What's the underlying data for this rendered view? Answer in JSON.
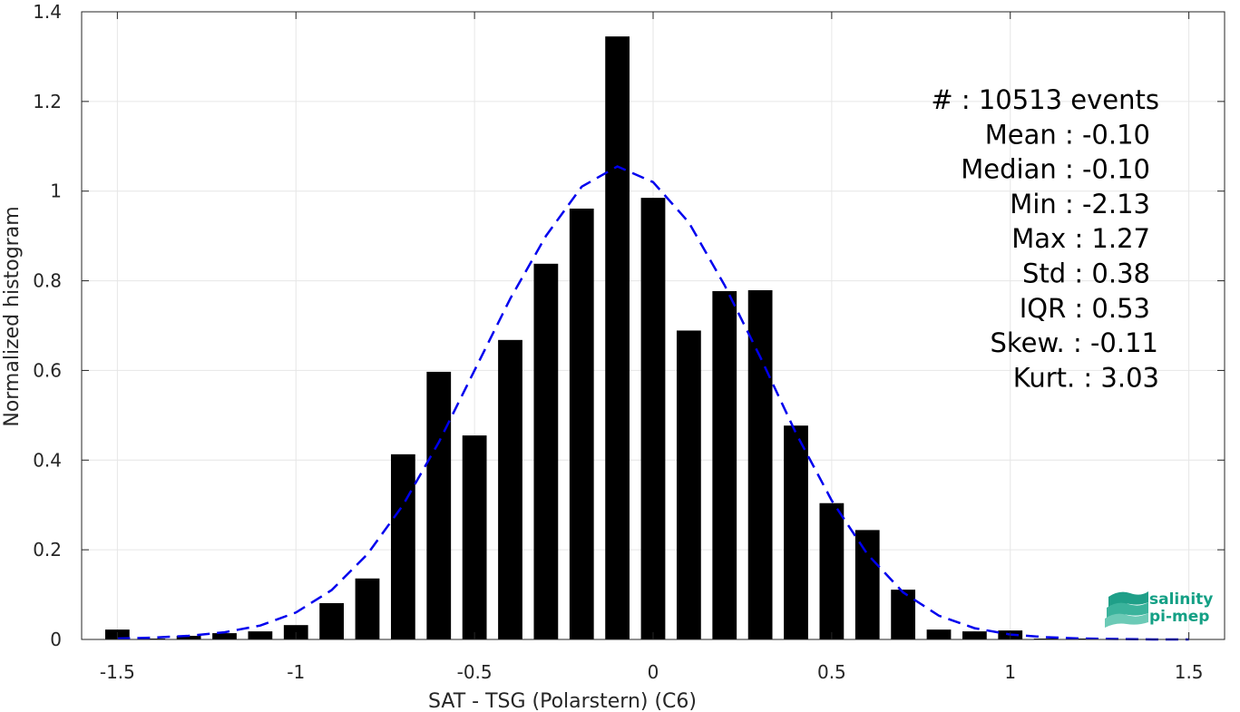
{
  "chart_data": {
    "type": "bar",
    "xlabel": "SAT - TSG (Polarstern) (C6)",
    "ylabel": "Normalized histogram",
    "xlim": [
      -1.6,
      1.6
    ],
    "ylim": [
      0,
      1.4
    ],
    "xticks": [
      -1.5,
      -1,
      -0.5,
      0,
      0.5,
      1,
      1.5
    ],
    "xtick_labels": [
      "-1.5",
      "-1",
      "-0.5",
      "0",
      "0.5",
      "1",
      "1.5"
    ],
    "yticks": [
      0,
      0.2,
      0.4,
      0.6,
      0.8,
      1,
      1.2,
      1.4
    ],
    "ytick_labels": [
      "0",
      "0.2",
      "0.4",
      "0.6",
      "0.8",
      "1",
      "1.2",
      "1.4"
    ],
    "grid": true,
    "bin_width": 0.1,
    "bar_color": "#000000",
    "bins": [
      {
        "x": -1.5,
        "y": 0.022
      },
      {
        "x": -1.4,
        "y": 0.002
      },
      {
        "x": -1.3,
        "y": 0.008
      },
      {
        "x": -1.2,
        "y": 0.014
      },
      {
        "x": -1.1,
        "y": 0.018
      },
      {
        "x": -1.0,
        "y": 0.032
      },
      {
        "x": -0.9,
        "y": 0.081
      },
      {
        "x": -0.8,
        "y": 0.136
      },
      {
        "x": -0.7,
        "y": 0.413
      },
      {
        "x": -0.6,
        "y": 0.597
      },
      {
        "x": -0.5,
        "y": 0.455
      },
      {
        "x": -0.4,
        "y": 0.668
      },
      {
        "x": -0.3,
        "y": 0.838
      },
      {
        "x": -0.2,
        "y": 0.961
      },
      {
        "x": -0.1,
        "y": 1.345
      },
      {
        "x": 0.0,
        "y": 0.985
      },
      {
        "x": 0.1,
        "y": 0.689
      },
      {
        "x": 0.2,
        "y": 0.777
      },
      {
        "x": 0.3,
        "y": 0.779
      },
      {
        "x": 0.4,
        "y": 0.477
      },
      {
        "x": 0.5,
        "y": 0.304
      },
      {
        "x": 0.6,
        "y": 0.244
      },
      {
        "x": 0.7,
        "y": 0.111
      },
      {
        "x": 0.8,
        "y": 0.022
      },
      {
        "x": 0.9,
        "y": 0.018
      },
      {
        "x": 1.0,
        "y": 0.02
      },
      {
        "x": 1.1,
        "y": 0.002
      },
      {
        "x": 1.2,
        "y": 0.002
      },
      {
        "x": 1.3,
        "y": 0.001
      }
    ],
    "fit_curve": {
      "color": "#0000ee",
      "style": "dashed",
      "x": [
        -1.5,
        -1.4,
        -1.3,
        -1.2,
        -1.1,
        -1.0,
        -0.9,
        -0.8,
        -0.7,
        -0.6,
        -0.5,
        -0.4,
        -0.3,
        -0.2,
        -0.1,
        0.0,
        0.1,
        0.2,
        0.3,
        0.4,
        0.5,
        0.6,
        0.7,
        0.8,
        0.9,
        1.0,
        1.1,
        1.2,
        1.3,
        1.4,
        1.5
      ],
      "y": [
        0.002,
        0.004,
        0.008,
        0.016,
        0.031,
        0.06,
        0.11,
        0.19,
        0.3,
        0.44,
        0.6,
        0.76,
        0.9,
        1.01,
        1.055,
        1.02,
        0.93,
        0.79,
        0.63,
        0.46,
        0.31,
        0.19,
        0.105,
        0.053,
        0.025,
        0.011,
        0.005,
        0.002,
        0.001,
        0.0,
        0.0
      ]
    },
    "annotations": [
      {
        "label": "#  : 10513 events"
      },
      {
        "label": "Mean : -0.10"
      },
      {
        "label": "Median : -0.10"
      },
      {
        "label": "Min : -2.13"
      },
      {
        "label": "Max : 1.27"
      },
      {
        "label": "Std : 0.38"
      },
      {
        "label": "IQR : 0.53"
      },
      {
        "label": "Skew. : -0.11"
      },
      {
        "label": "Kurt. : 3.03"
      }
    ]
  },
  "logo": {
    "line1": "salinity",
    "line2": "pi-mep",
    "color": "#14a085"
  }
}
